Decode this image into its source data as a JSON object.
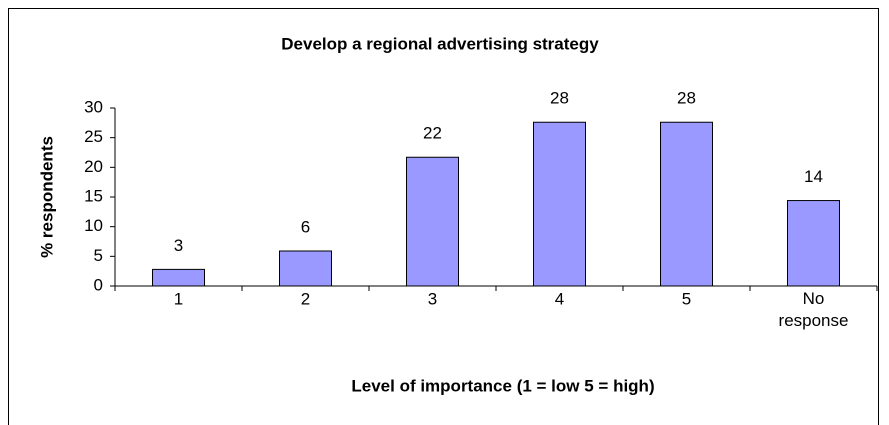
{
  "chart_data": {
    "type": "bar",
    "title": "Develop a regional advertising strategy",
    "x_label": "Level of importance (1 = low 5 = high)",
    "y_label": "% respondents",
    "categories": [
      "1",
      "2",
      "3",
      "4",
      "5",
      "No response"
    ],
    "values": [
      2.8,
      5.9,
      21.7,
      27.6,
      27.6,
      14.4
    ],
    "value_labels": [
      "3",
      "6",
      "22",
      "28",
      "28",
      "14"
    ],
    "color": "#9999ff",
    "ylim": [
      0,
      30
    ],
    "yticks": [
      0,
      5,
      10,
      15,
      20,
      25,
      30
    ],
    "grid": false
  }
}
